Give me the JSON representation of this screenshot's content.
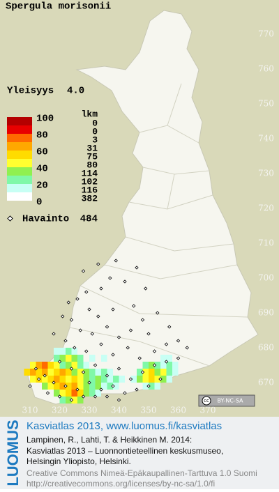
{
  "header": {
    "title": "Spergula morisonii",
    "frequency_label": "Yleisyys",
    "frequency_value": "4.0"
  },
  "legend": {
    "thresholds": [
      100,
      80,
      60,
      40,
      20,
      0
    ],
    "colors": [
      "#b40000",
      "#e80000",
      "#ff6a00",
      "#ffa800",
      "#ffdc00",
      "#ffff30",
      "#90f050",
      "#80f8a8",
      "#c8fff4",
      "#ffffff"
    ],
    "count_header": "lkm",
    "counts": [
      0,
      0,
      3,
      31,
      75,
      80,
      114,
      102,
      116,
      382
    ],
    "observation_label": "Havainto",
    "observation_count": 484
  },
  "map": {
    "yticks": [
      770,
      760,
      750,
      740,
      730,
      720,
      710,
      700,
      690,
      680,
      670
    ],
    "xticks": [
      310,
      320,
      330,
      340,
      350,
      360,
      370
    ],
    "cells": [
      [
        318,
        678,
        8
      ],
      [
        320,
        678,
        8
      ],
      [
        322,
        678,
        7
      ],
      [
        324,
        678,
        8
      ],
      [
        318,
        676,
        7
      ],
      [
        320,
        676,
        6
      ],
      [
        322,
        676,
        5
      ],
      [
        324,
        676,
        6
      ],
      [
        326,
        676,
        7
      ],
      [
        330,
        676,
        8
      ],
      [
        334,
        676,
        8
      ],
      [
        354,
        676,
        8
      ],
      [
        356,
        676,
        8
      ],
      [
        310,
        674,
        5
      ],
      [
        312,
        674,
        3
      ],
      [
        314,
        674,
        2
      ],
      [
        316,
        674,
        4
      ],
      [
        318,
        674,
        5
      ],
      [
        320,
        674,
        7
      ],
      [
        322,
        674,
        6
      ],
      [
        324,
        674,
        5
      ],
      [
        326,
        674,
        7
      ],
      [
        328,
        674,
        8
      ],
      [
        348,
        674,
        7
      ],
      [
        350,
        674,
        6
      ],
      [
        352,
        674,
        7
      ],
      [
        354,
        674,
        8
      ],
      [
        356,
        674,
        7
      ],
      [
        358,
        674,
        8
      ],
      [
        308,
        672,
        4
      ],
      [
        310,
        672,
        3
      ],
      [
        312,
        672,
        4
      ],
      [
        314,
        672,
        3
      ],
      [
        316,
        672,
        5
      ],
      [
        318,
        672,
        4
      ],
      [
        320,
        672,
        3
      ],
      [
        322,
        672,
        4
      ],
      [
        324,
        672,
        6
      ],
      [
        326,
        672,
        5
      ],
      [
        328,
        672,
        6
      ],
      [
        330,
        672,
        7
      ],
      [
        332,
        672,
        8
      ],
      [
        334,
        672,
        7
      ],
      [
        336,
        672,
        8
      ],
      [
        346,
        672,
        7
      ],
      [
        348,
        672,
        5
      ],
      [
        350,
        672,
        4
      ],
      [
        352,
        672,
        6
      ],
      [
        354,
        672,
        5
      ],
      [
        356,
        672,
        7
      ],
      [
        358,
        672,
        8
      ],
      [
        310,
        670,
        5
      ],
      [
        312,
        670,
        4
      ],
      [
        314,
        670,
        5
      ],
      [
        316,
        670,
        4
      ],
      [
        318,
        670,
        3
      ],
      [
        320,
        670,
        4
      ],
      [
        322,
        670,
        5
      ],
      [
        324,
        670,
        4
      ],
      [
        326,
        670,
        5
      ],
      [
        328,
        670,
        6
      ],
      [
        330,
        670,
        7
      ],
      [
        332,
        670,
        6
      ],
      [
        334,
        670,
        7
      ],
      [
        336,
        670,
        8
      ],
      [
        338,
        670,
        7
      ],
      [
        340,
        670,
        8
      ],
      [
        344,
        670,
        8
      ],
      [
        346,
        670,
        6
      ],
      [
        348,
        670,
        5
      ],
      [
        350,
        670,
        4
      ],
      [
        352,
        670,
        5
      ],
      [
        354,
        670,
        6
      ],
      [
        356,
        670,
        8
      ],
      [
        314,
        668,
        6
      ],
      [
        316,
        668,
        5
      ],
      [
        318,
        668,
        4
      ],
      [
        320,
        668,
        3
      ],
      [
        322,
        668,
        4
      ],
      [
        324,
        668,
        3
      ],
      [
        326,
        668,
        5
      ],
      [
        328,
        668,
        6
      ],
      [
        330,
        668,
        7
      ],
      [
        332,
        668,
        6
      ],
      [
        334,
        668,
        8
      ],
      [
        336,
        668,
        7
      ],
      [
        338,
        668,
        8
      ],
      [
        348,
        668,
        8
      ],
      [
        350,
        668,
        7
      ],
      [
        352,
        668,
        8
      ],
      [
        318,
        666,
        6
      ],
      [
        320,
        666,
        5
      ],
      [
        322,
        666,
        4
      ],
      [
        324,
        666,
        2
      ],
      [
        326,
        666,
        4
      ],
      [
        328,
        666,
        6
      ],
      [
        330,
        666,
        7
      ],
      [
        332,
        666,
        8
      ],
      [
        320,
        664,
        7
      ],
      [
        322,
        664,
        6
      ],
      [
        324,
        664,
        5
      ],
      [
        326,
        664,
        6
      ]
    ],
    "observations": [
      [
        326,
        694
      ],
      [
        329,
        696
      ],
      [
        334,
        697
      ],
      [
        337,
        700
      ],
      [
        342,
        699
      ],
      [
        330,
        691
      ],
      [
        333,
        689
      ],
      [
        338,
        691
      ],
      [
        345,
        692
      ],
      [
        348,
        688
      ],
      [
        324,
        688
      ],
      [
        327,
        685
      ],
      [
        331,
        684
      ],
      [
        336,
        686
      ],
      [
        340,
        683
      ],
      [
        344,
        685
      ],
      [
        350,
        684
      ],
      [
        322,
        682
      ],
      [
        325,
        680
      ],
      [
        329,
        679
      ],
      [
        334,
        681
      ],
      [
        338,
        678
      ],
      [
        343,
        680
      ],
      [
        347,
        677
      ],
      [
        352,
        679
      ],
      [
        356,
        681
      ],
      [
        360,
        682
      ],
      [
        363,
        680
      ],
      [
        320,
        676
      ],
      [
        324,
        674
      ],
      [
        328,
        673
      ],
      [
        332,
        675
      ],
      [
        336,
        672
      ],
      [
        340,
        674
      ],
      [
        344,
        671
      ],
      [
        348,
        673
      ],
      [
        352,
        675
      ],
      [
        356,
        676
      ],
      [
        360,
        677
      ],
      [
        315,
        672
      ],
      [
        318,
        670
      ],
      [
        322,
        669
      ],
      [
        326,
        668
      ],
      [
        330,
        670
      ],
      [
        334,
        668
      ],
      [
        338,
        669
      ],
      [
        342,
        667
      ],
      [
        346,
        668
      ],
      [
        350,
        669
      ],
      [
        354,
        671
      ],
      [
        312,
        674
      ],
      [
        316,
        667
      ],
      [
        320,
        666
      ],
      [
        324,
        665
      ],
      [
        328,
        666
      ],
      [
        332,
        666
      ],
      [
        336,
        666
      ],
      [
        340,
        665
      ],
      [
        318,
        684
      ],
      [
        321,
        689
      ],
      [
        323,
        693
      ],
      [
        328,
        702
      ],
      [
        333,
        704
      ],
      [
        339,
        705
      ],
      [
        346,
        703
      ],
      [
        349,
        697
      ],
      [
        353,
        690
      ],
      [
        357,
        686
      ],
      [
        310,
        669
      ],
      [
        313,
        671
      ]
    ],
    "license_badge": {
      "icon": "cc",
      "text": "BY-NC-SA"
    }
  },
  "footer": {
    "logo": "LUOMUS",
    "site": "Kasviatlas 2013, www.luomus.fi/kasviatlas",
    "citation": [
      "Lampinen, R., Lahti, T. & Heikkinen M. 2014:",
      "Kasviatlas 2013 – Luonnontieteellinen keskusmuseo,",
      "Helsingin Yliopisto, Helsinki."
    ],
    "license": "Creative Commons Nimeä-Epäkaupallinen-Tarttuva 1.0 Suomi",
    "license_url": "http://creativecommons.org/licenses/by-nc-sa/1.0/fi"
  }
}
